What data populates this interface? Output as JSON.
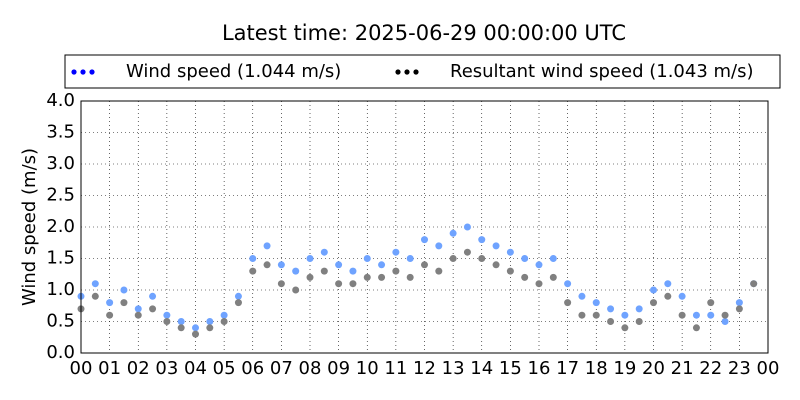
{
  "chart_data": {
    "type": "scatter",
    "title": "Latest time: 2025-06-29 00:00:00 UTC",
    "y_label": "Wind speed (m/s)",
    "xlim": [
      0,
      24
    ],
    "ylim": [
      0,
      4
    ],
    "grid": true,
    "legend_position": "top",
    "xticks": [
      {
        "value": 0,
        "label": "00"
      },
      {
        "value": 1,
        "label": "01"
      },
      {
        "value": 2,
        "label": "02"
      },
      {
        "value": 3,
        "label": "03"
      },
      {
        "value": 4,
        "label": "04"
      },
      {
        "value": 5,
        "label": "05"
      },
      {
        "value": 6,
        "label": "06"
      },
      {
        "value": 7,
        "label": "07"
      },
      {
        "value": 8,
        "label": "08"
      },
      {
        "value": 9,
        "label": "09"
      },
      {
        "value": 10,
        "label": "10"
      },
      {
        "value": 11,
        "label": "11"
      },
      {
        "value": 12,
        "label": "12"
      },
      {
        "value": 13,
        "label": "13"
      },
      {
        "value": 14,
        "label": "14"
      },
      {
        "value": 15,
        "label": "15"
      },
      {
        "value": 16,
        "label": "16"
      },
      {
        "value": 17,
        "label": "17"
      },
      {
        "value": 18,
        "label": "18"
      },
      {
        "value": 19,
        "label": "19"
      },
      {
        "value": 20,
        "label": "20"
      },
      {
        "value": 21,
        "label": "21"
      },
      {
        "value": 22,
        "label": "22"
      },
      {
        "value": 23,
        "label": "23"
      },
      {
        "value": 24,
        "label": "00"
      }
    ],
    "yticks": [
      {
        "value": 0,
        "label": "0.0"
      },
      0.5,
      {
        "value": 1,
        "label": "1.0"
      },
      1.5,
      {
        "value": 2,
        "label": "2.0"
      },
      2.5,
      {
        "value": 3,
        "label": "3.0"
      },
      3.5,
      {
        "value": 4,
        "label": "4.0"
      }
    ],
    "x": [
      0,
      0.5,
      1,
      1.5,
      2,
      2.5,
      3,
      3.5,
      4,
      4.5,
      5,
      5.5,
      6,
      6.5,
      7,
      7.5,
      8,
      8.5,
      9,
      9.5,
      10,
      10.5,
      11,
      11.5,
      12,
      12.5,
      13,
      13.5,
      14,
      14.5,
      15,
      15.5,
      16,
      16.5,
      17,
      17.5,
      18,
      18.5,
      19,
      19.5,
      20,
      20.5,
      21,
      21.5,
      22,
      22.5,
      23,
      23.5
    ],
    "series": [
      {
        "name": "Wind speed (1.044 m/s)",
        "color": "#0000ff",
        "point_color": "#6fa3ff",
        "values": [
          0.9,
          1.1,
          0.8,
          1.0,
          0.7,
          0.9,
          0.6,
          0.5,
          0.4,
          0.5,
          0.6,
          0.9,
          1.5,
          1.7,
          1.4,
          1.3,
          1.5,
          1.6,
          1.4,
          1.3,
          1.5,
          1.4,
          1.6,
          1.5,
          1.8,
          1.7,
          1.9,
          2.0,
          1.8,
          1.7,
          1.6,
          1.5,
          1.4,
          1.5,
          1.1,
          0.9,
          0.8,
          0.7,
          0.6,
          0.7,
          1.0,
          1.1,
          0.9,
          0.6,
          0.6,
          0.5,
          0.8,
          1.1
        ]
      },
      {
        "name": "Resultant wind speed (1.043 m/s)",
        "color": "#000000",
        "point_color": "#808080",
        "values": [
          0.7,
          0.9,
          0.6,
          0.8,
          0.6,
          0.7,
          0.5,
          0.4,
          0.3,
          0.4,
          0.5,
          0.8,
          1.3,
          1.4,
          1.1,
          1.0,
          1.2,
          1.3,
          1.1,
          1.1,
          1.2,
          1.2,
          1.3,
          1.2,
          1.4,
          1.3,
          1.5,
          1.6,
          1.5,
          1.4,
          1.3,
          1.2,
          1.1,
          1.2,
          0.8,
          0.6,
          0.6,
          0.5,
          0.4,
          0.5,
          0.8,
          0.9,
          0.6,
          0.4,
          0.8,
          0.6,
          0.7,
          1.1
        ]
      }
    ]
  }
}
